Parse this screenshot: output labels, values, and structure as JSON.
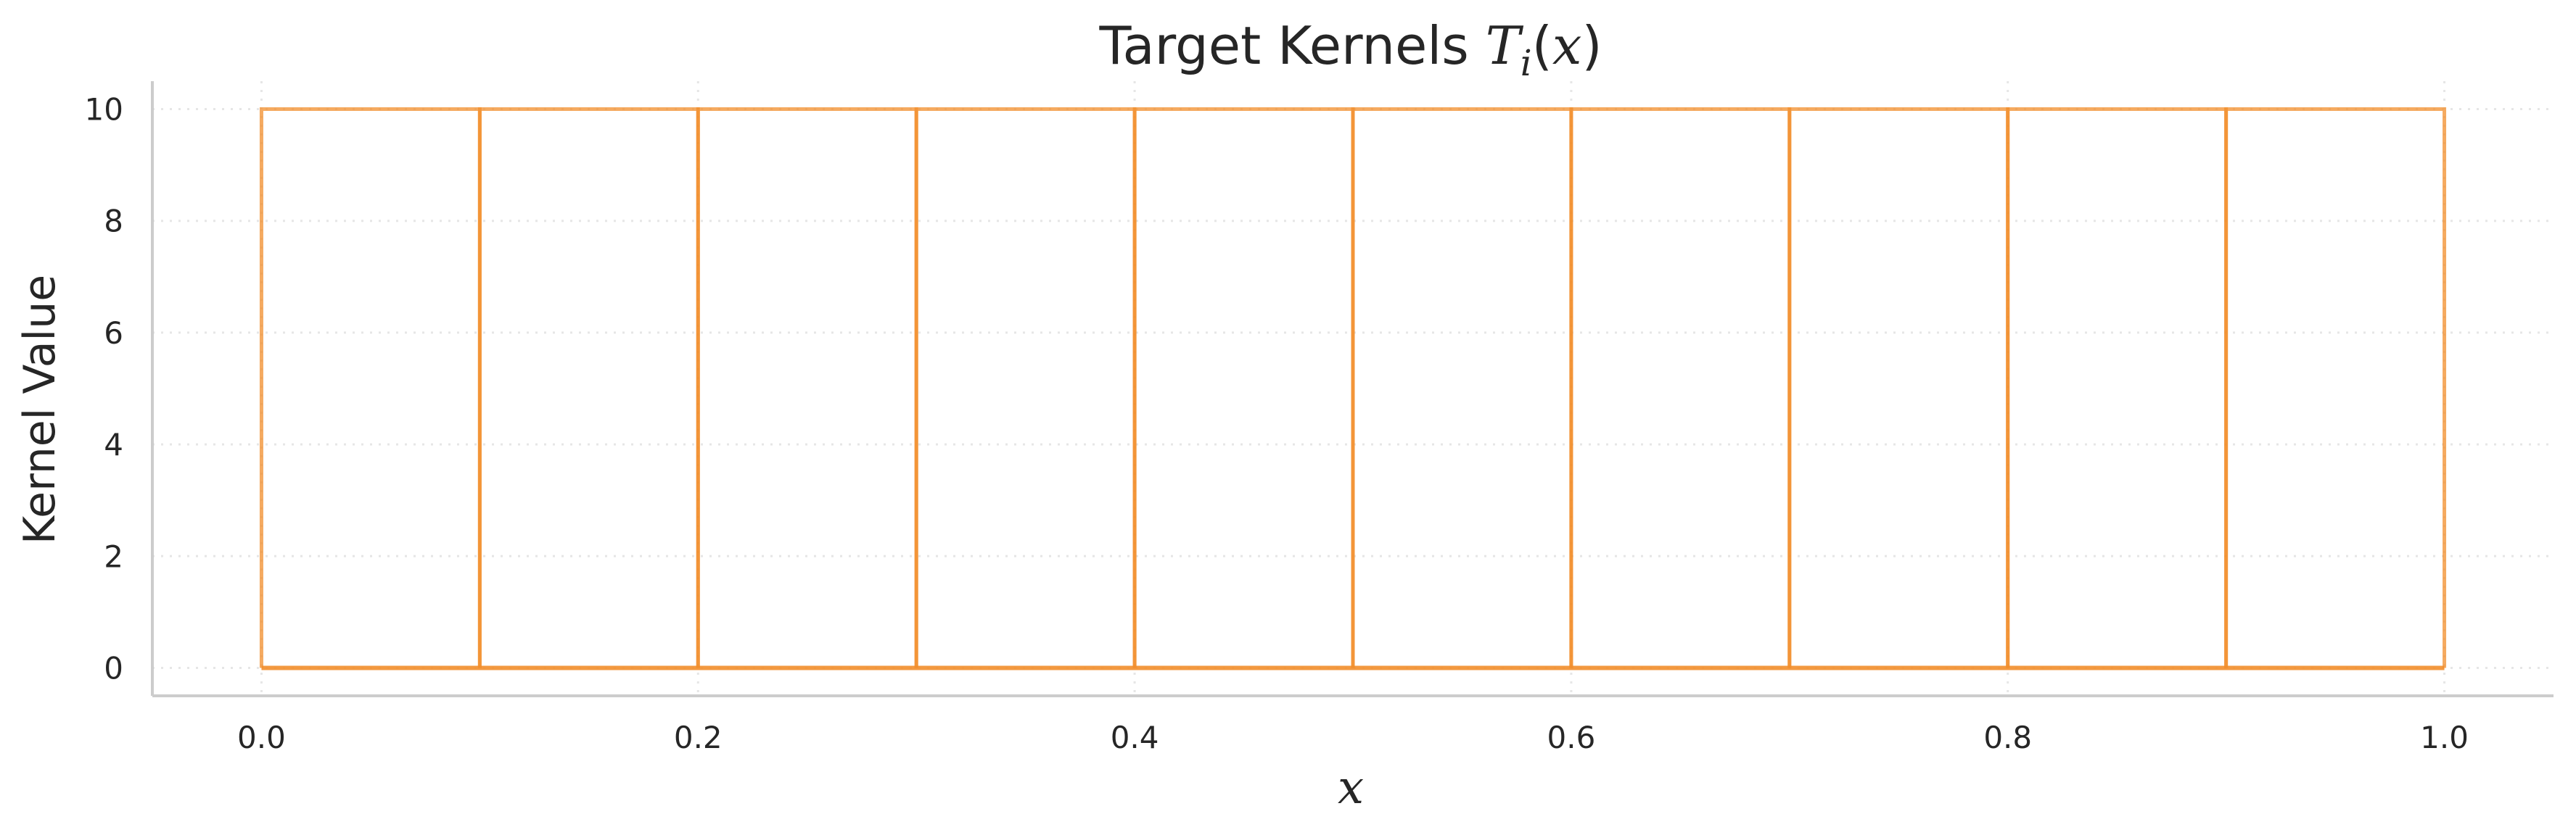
{
  "title": {
    "prefix": "Target Kernels ",
    "var": "T",
    "subscript": "i",
    "open_paren": "(",
    "arg": "x",
    "close_paren": ")"
  },
  "colors": {
    "series": "#f28e2b",
    "axis": "#cccccc",
    "grid": "#e6e6e6",
    "text": "#262626",
    "background": "#ffffff"
  },
  "chart_data": {
    "type": "line",
    "title": "Target Kernels T_i(x)",
    "xlabel": "x",
    "ylabel": "Kernel Value",
    "xlim": [
      -0.05,
      1.05
    ],
    "ylim": [
      -0.5,
      10.5
    ],
    "xticks": [
      0.0,
      0.2,
      0.4,
      0.6,
      0.8,
      1.0
    ],
    "xtick_labels": [
      "0.0",
      "0.2",
      "0.4",
      "0.6",
      "0.8",
      "1.0"
    ],
    "yticks": [
      0,
      2,
      4,
      6,
      8,
      10
    ],
    "ytick_labels": [
      "0",
      "2",
      "4",
      "6",
      "8",
      "10"
    ],
    "grid": true,
    "grid_style": "dotted",
    "legend": "none",
    "series": [
      {
        "x": [
          0.0,
          0.0,
          0.1,
          0.1
        ],
        "y": [
          0,
          10,
          10,
          0
        ]
      },
      {
        "x": [
          0.1,
          0.1,
          0.2,
          0.2
        ],
        "y": [
          0,
          10,
          10,
          0
        ]
      },
      {
        "x": [
          0.2,
          0.2,
          0.3,
          0.3
        ],
        "y": [
          0,
          10,
          10,
          0
        ]
      },
      {
        "x": [
          0.3,
          0.3,
          0.4,
          0.4
        ],
        "y": [
          0,
          10,
          10,
          0
        ]
      },
      {
        "x": [
          0.4,
          0.4,
          0.5,
          0.5
        ],
        "y": [
          0,
          10,
          10,
          0
        ]
      },
      {
        "x": [
          0.5,
          0.5,
          0.6,
          0.6
        ],
        "y": [
          0,
          10,
          10,
          0
        ]
      },
      {
        "x": [
          0.6,
          0.6,
          0.7,
          0.7
        ],
        "y": [
          0,
          10,
          10,
          0
        ]
      },
      {
        "x": [
          0.7,
          0.7,
          0.8,
          0.8
        ],
        "y": [
          0,
          10,
          10,
          0
        ]
      },
      {
        "x": [
          0.8,
          0.8,
          0.9,
          0.9
        ],
        "y": [
          0,
          10,
          10,
          0
        ]
      },
      {
        "x": [
          0.9,
          0.9,
          1.0,
          1.0
        ],
        "y": [
          0,
          10,
          10,
          0
        ]
      }
    ],
    "baseline": {
      "x": [
        0.0,
        1.0
      ],
      "y": [
        0,
        0
      ]
    }
  }
}
